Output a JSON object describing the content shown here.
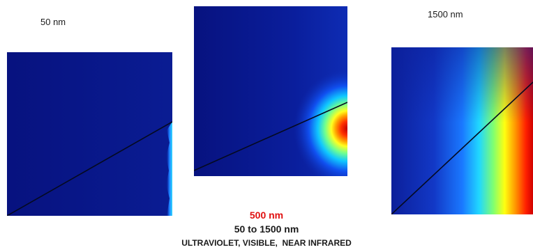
{
  "panels": [
    {
      "wavelength_label": "50 nm"
    },
    {
      "wavelength_label": ""
    },
    {
      "wavelength_label": "1500 nm"
    }
  ],
  "captions": {
    "highlight": "500 nm",
    "range": "50 to 1500 nm",
    "bands": "ULTRAVIOLET, VISIBLE,  NEAR INFRARED"
  },
  "colors": {
    "background_field": "#0a1c8c",
    "highlight_text": "#e01010",
    "caption_text": "#1a1a1a",
    "colormap": [
      "#00008f",
      "#0040ff",
      "#00d0ff",
      "#60ff90",
      "#ffff00",
      "#ff8000",
      "#e00000"
    ]
  }
}
